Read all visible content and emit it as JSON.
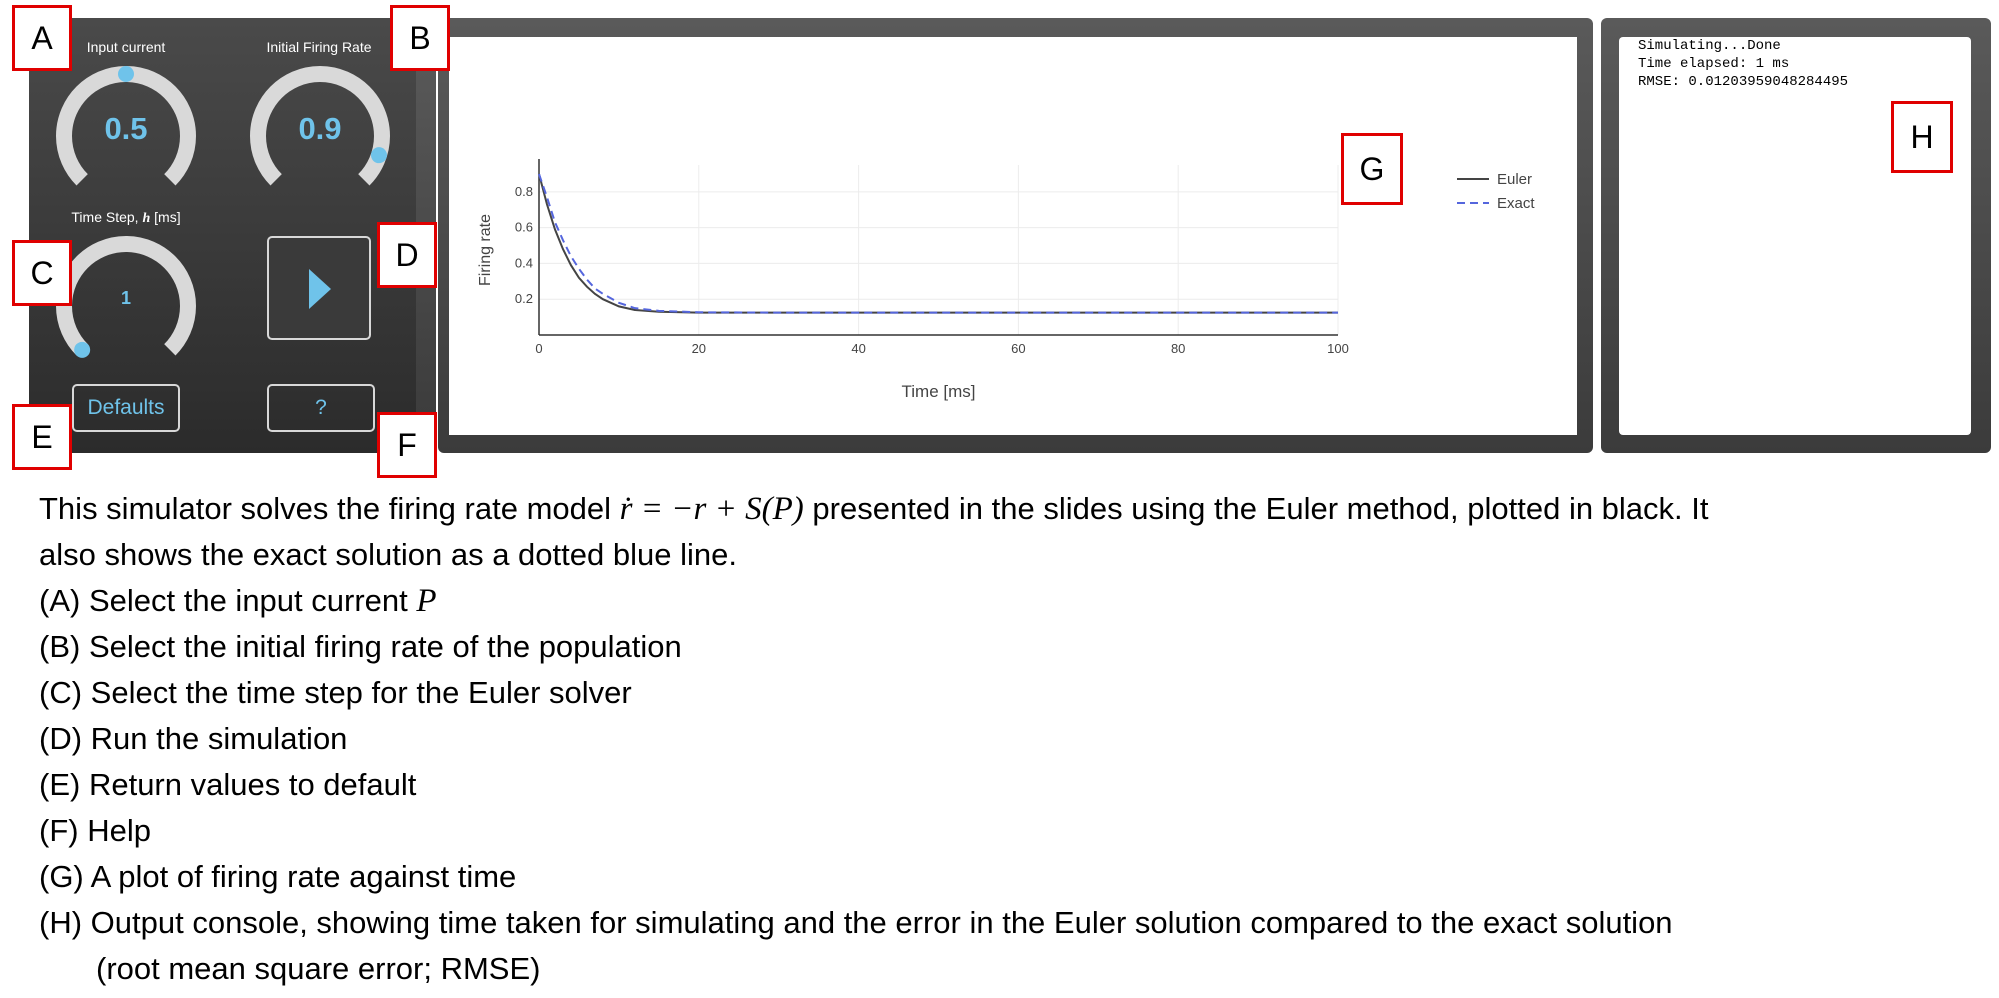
{
  "controls": {
    "input_current": {
      "title": "Input current",
      "value": "0.5",
      "level": 0.5
    },
    "initial_rate": {
      "title": "Initial Firing Rate",
      "value": "0.9",
      "level": 0.9
    },
    "time_step": {
      "title_prefix": "Time Step,",
      "title_symbol": "h",
      "title_unit": "[ms]",
      "value": "1",
      "level": 0.0
    },
    "defaults_label": "Defaults",
    "help_label": "?",
    "accent_color": "#6fc3ea"
  },
  "labels": {
    "A": "A",
    "B": "B",
    "C": "C",
    "D": "D",
    "E": "E",
    "F": "F",
    "G": "G",
    "H": "H"
  },
  "chart_data": {
    "type": "line",
    "title": "",
    "xlabel": "Time [ms]",
    "ylabel": "Firing rate",
    "xlim": [
      0,
      100
    ],
    "ylim": [
      0,
      0.95
    ],
    "xticks": [
      0,
      20,
      40,
      60,
      80,
      100
    ],
    "yticks": [
      0.2,
      0.4,
      0.6,
      0.8
    ],
    "grid": true,
    "legend_position": "top-right",
    "series": [
      {
        "name": "Euler",
        "color": "#444444",
        "dash": "solid",
        "x": [
          0,
          1,
          2,
          3,
          4,
          5,
          6,
          7,
          8,
          10,
          12,
          15,
          20,
          30,
          50,
          100
        ],
        "y": [
          0.9,
          0.73,
          0.59,
          0.48,
          0.39,
          0.32,
          0.27,
          0.23,
          0.2,
          0.16,
          0.14,
          0.13,
          0.125,
          0.125,
          0.125,
          0.125
        ]
      },
      {
        "name": "Exact",
        "color": "#5566dd",
        "dash": "dashed",
        "x": [
          0,
          1,
          2,
          3,
          4,
          5,
          6,
          7,
          8,
          10,
          12,
          15,
          20,
          30,
          50,
          100
        ],
        "y": [
          0.9,
          0.77,
          0.63,
          0.53,
          0.44,
          0.37,
          0.31,
          0.26,
          0.23,
          0.18,
          0.15,
          0.135,
          0.127,
          0.125,
          0.125,
          0.125
        ]
      }
    ]
  },
  "console": {
    "lines": [
      "Simulating...Done",
      "Time elapsed: 1 ms",
      "RMSE: 0.01203959048284495"
    ]
  },
  "description": {
    "intro_before": "This simulator solves the firing rate model",
    "equation": "ṙ = −r + S(P)",
    "intro_after": "presented in the slides using the Euler method, plotted in black. It",
    "intro_line2": "also shows the exact solution as a dotted blue line.",
    "items": [
      {
        "key": "(A)",
        "text": "Select the input current",
        "math": "P"
      },
      {
        "key": "(B)",
        "text": "Select the initial firing rate of the population"
      },
      {
        "key": "(C)",
        "text": "Select the time step for the Euler solver"
      },
      {
        "key": "(D)",
        "text": "Run the simulation"
      },
      {
        "key": "(E)",
        "text": "Return values to default"
      },
      {
        "key": "(F)",
        "text": "Help"
      },
      {
        "key": "(G)",
        "text": "A plot of firing rate against time"
      },
      {
        "key": "(H)",
        "text": "Output console, showing time taken for simulating and the error in the Euler solution compared to the exact solution"
      }
    ],
    "h_continuation": "(root mean square error; RMSE)"
  }
}
